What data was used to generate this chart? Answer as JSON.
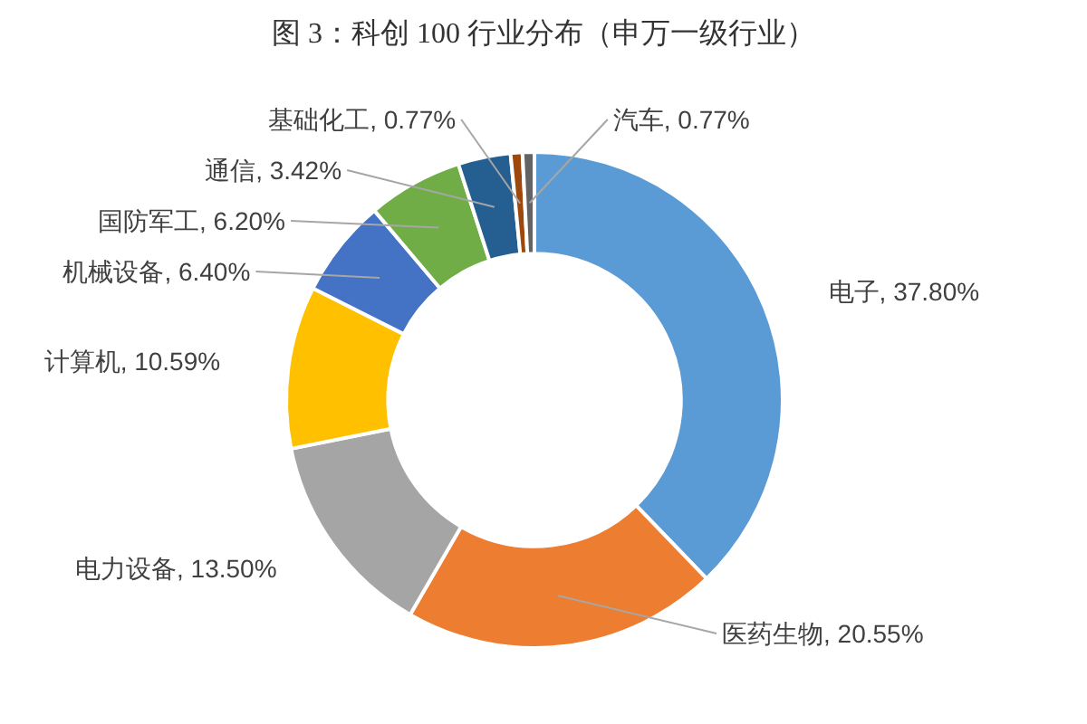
{
  "chart_data": {
    "type": "donut",
    "title": "图 3：科创 100 行业分布（申万一级行业）",
    "categories": [
      "电子",
      "医药生物",
      "电力设备",
      "计算机",
      "机械设备",
      "国防军工",
      "通信",
      "基础化工",
      "汽车"
    ],
    "values": [
      37.8,
      20.55,
      13.5,
      10.59,
      6.4,
      6.2,
      3.42,
      0.77,
      0.77
    ],
    "colors": [
      "#5b9bd5",
      "#ed7d31",
      "#a5a5a5",
      "#ffc000",
      "#4472c4",
      "#70ad47",
      "#255e91",
      "#9e480e",
      "#636363"
    ],
    "value_labels": [
      "37.80%",
      "20.55%",
      "13.50%",
      "10.59%",
      "6.40%",
      "6.20%",
      "3.42%",
      "0.77%",
      "0.77%"
    ]
  }
}
